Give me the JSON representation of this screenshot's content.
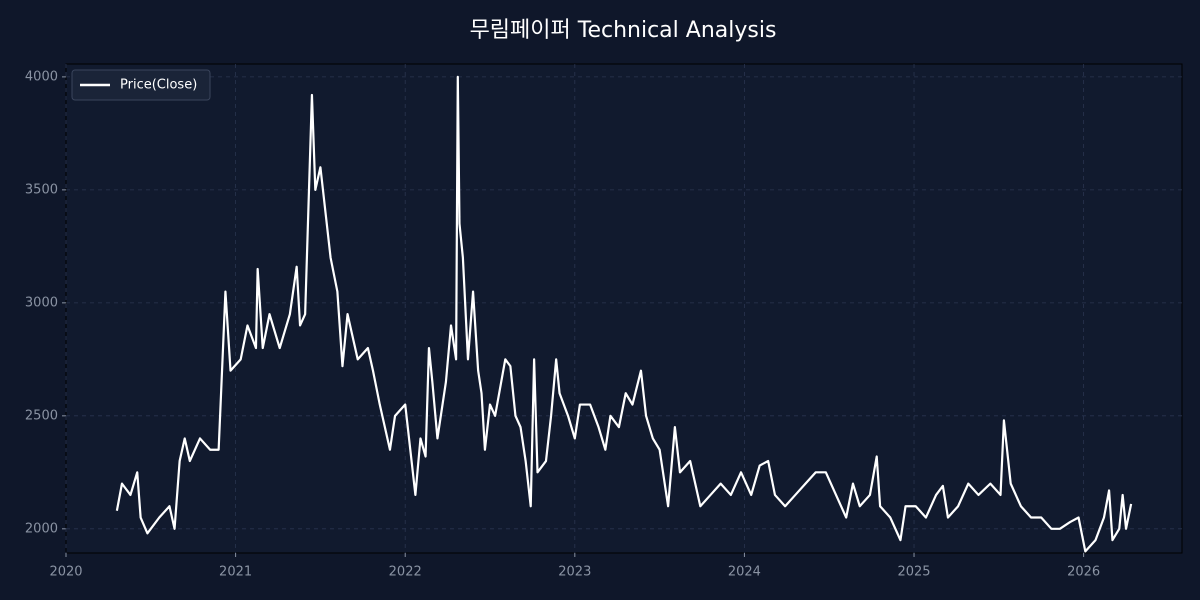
{
  "chart_data": {
    "type": "line",
    "title": "무림페이퍼 Technical Analysis",
    "x": [
      2020.3,
      2020.33,
      2020.38,
      2020.42,
      2020.44,
      2020.48,
      2020.55,
      2020.61,
      2020.64,
      2020.67,
      2020.7,
      2020.73,
      2020.79,
      2020.85,
      2020.9,
      2020.92,
      2020.94,
      2020.97,
      2021.03,
      2021.07,
      2021.12,
      2021.13,
      2021.16,
      2021.2,
      2021.26,
      2021.32,
      2021.36,
      2021.38,
      2021.41,
      2021.45,
      2021.47,
      2021.5,
      2021.53,
      2021.56,
      2021.6,
      2021.63,
      2021.66,
      2021.72,
      2021.78,
      2021.81,
      2021.85,
      2021.91,
      2021.94,
      2022.0,
      2022.03,
      2022.06,
      2022.09,
      2022.12,
      2022.14,
      2022.16,
      2022.19,
      2022.24,
      2022.27,
      2022.3,
      2022.31,
      2022.32,
      2022.34,
      2022.37,
      2022.4,
      2022.43,
      2022.45,
      2022.47,
      2022.5,
      2022.53,
      2022.59,
      2022.62,
      2022.65,
      2022.68,
      2022.71,
      2022.74,
      2022.76,
      2022.78,
      2022.83,
      2022.86,
      2022.89,
      2022.91,
      2022.96,
      2023.0,
      2023.03,
      2023.09,
      2023.14,
      2023.18,
      2023.21,
      2023.26,
      2023.3,
      2023.34,
      2023.39,
      2023.42,
      2023.46,
      2023.5,
      2023.55,
      2023.59,
      2023.62,
      2023.68,
      2023.74,
      2023.8,
      2023.86,
      2023.92,
      2023.98,
      2024.04,
      2024.09,
      2024.14,
      2024.18,
      2024.24,
      2024.3,
      2024.36,
      2024.42,
      2024.48,
      2024.54,
      2024.6,
      2024.64,
      2024.68,
      2024.74,
      2024.78,
      2024.8,
      2024.86,
      2024.92,
      2024.95,
      2025.01,
      2025.07,
      2025.13,
      2025.17,
      2025.2,
      2025.26,
      2025.32,
      2025.38,
      2025.45,
      2025.51,
      2025.53,
      2025.57,
      2025.63,
      2025.69,
      2025.75,
      2025.81,
      2025.86,
      2025.92,
      2025.97,
      2026.01,
      2026.07,
      2026.12,
      2026.15,
      2026.17,
      2026.21,
      2026.23,
      2026.25,
      2026.28
    ],
    "series": [
      {
        "name": "Price(Close)",
        "color": "#ffffff",
        "values": [
          2080,
          2200,
          2150,
          2250,
          2050,
          1980,
          2050,
          2100,
          2000,
          2300,
          2400,
          2300,
          2400,
          2350,
          2350,
          2700,
          3050,
          2700,
          2750,
          2900,
          2800,
          3150,
          2800,
          2950,
          2800,
          2950,
          3160,
          2900,
          2950,
          3920,
          3500,
          3600,
          3400,
          3200,
          3050,
          2720,
          2950,
          2750,
          2800,
          2700,
          2550,
          2350,
          2500,
          2550,
          2350,
          2150,
          2400,
          2320,
          2800,
          2650,
          2400,
          2650,
          2900,
          2750,
          4000,
          3350,
          3200,
          2750,
          3050,
          2700,
          2600,
          2350,
          2550,
          2500,
          2750,
          2720,
          2500,
          2450,
          2300,
          2100,
          2750,
          2250,
          2300,
          2500,
          2750,
          2600,
          2500,
          2400,
          2550,
          2550,
          2450,
          2350,
          2500,
          2450,
          2600,
          2550,
          2700,
          2500,
          2400,
          2350,
          2100,
          2450,
          2250,
          2300,
          2100,
          2150,
          2200,
          2150,
          2250,
          2150,
          2280,
          2300,
          2150,
          2100,
          2150,
          2200,
          2250,
          2250,
          2150,
          2050,
          2200,
          2100,
          2150,
          2320,
          2100,
          2050,
          1950,
          2100,
          2100,
          2050,
          2150,
          2190,
          2050,
          2100,
          2200,
          2150,
          2200,
          2150,
          2480,
          2200,
          2100,
          2050,
          2050,
          2000,
          2000,
          2030,
          2050,
          1900,
          1950,
          2050,
          2170,
          1950,
          2000,
          2150,
          2000,
          2110
        ]
      }
    ],
    "xlim": [
      2020.0,
      2026.58
    ],
    "xticks": [
      2020,
      2021,
      2022,
      2023,
      2024,
      2025,
      2026
    ],
    "ylim": [
      1893,
      4057
    ],
    "yticks": [
      2000,
      2500,
      3000,
      3500,
      4000
    ],
    "grid": true,
    "legend": "upper left"
  }
}
